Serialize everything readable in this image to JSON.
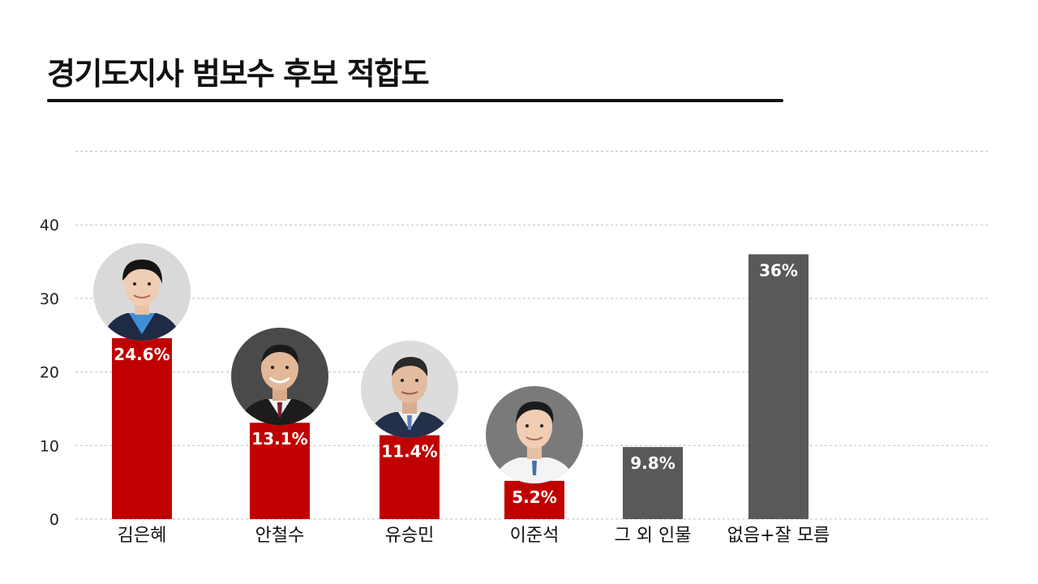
{
  "chart_data": {
    "type": "bar",
    "title": "경기도지사 범보수 후보 적합도",
    "categories": [
      "김은혜",
      "안철수",
      "유승민",
      "이준석",
      "그 외 인물",
      "없음+잘 모름"
    ],
    "values": [
      24.6,
      13.1,
      11.4,
      5.2,
      9.8,
      36
    ],
    "value_labels": [
      "24.6%",
      "13.1%",
      "11.4%",
      "5.2%",
      "9.8%",
      "36%"
    ],
    "yticks": [
      0,
      10,
      20,
      30,
      40
    ],
    "ylim": [
      0,
      50
    ],
    "xlabel": "",
    "ylabel": "",
    "grid": true,
    "legend": "none",
    "colors": {
      "candidate": "#c00000",
      "other": "#595959",
      "grid": "#bfbfbf",
      "label_text": "#ffffff",
      "axis_text": "#222222"
    },
    "bar_colors": [
      "#c00000",
      "#c00000",
      "#c00000",
      "#c00000",
      "#595959",
      "#595959"
    ],
    "photos": [
      "person-photo-kim",
      "person-photo-ahn",
      "person-photo-yoo",
      "person-photo-lee",
      null,
      null
    ]
  }
}
